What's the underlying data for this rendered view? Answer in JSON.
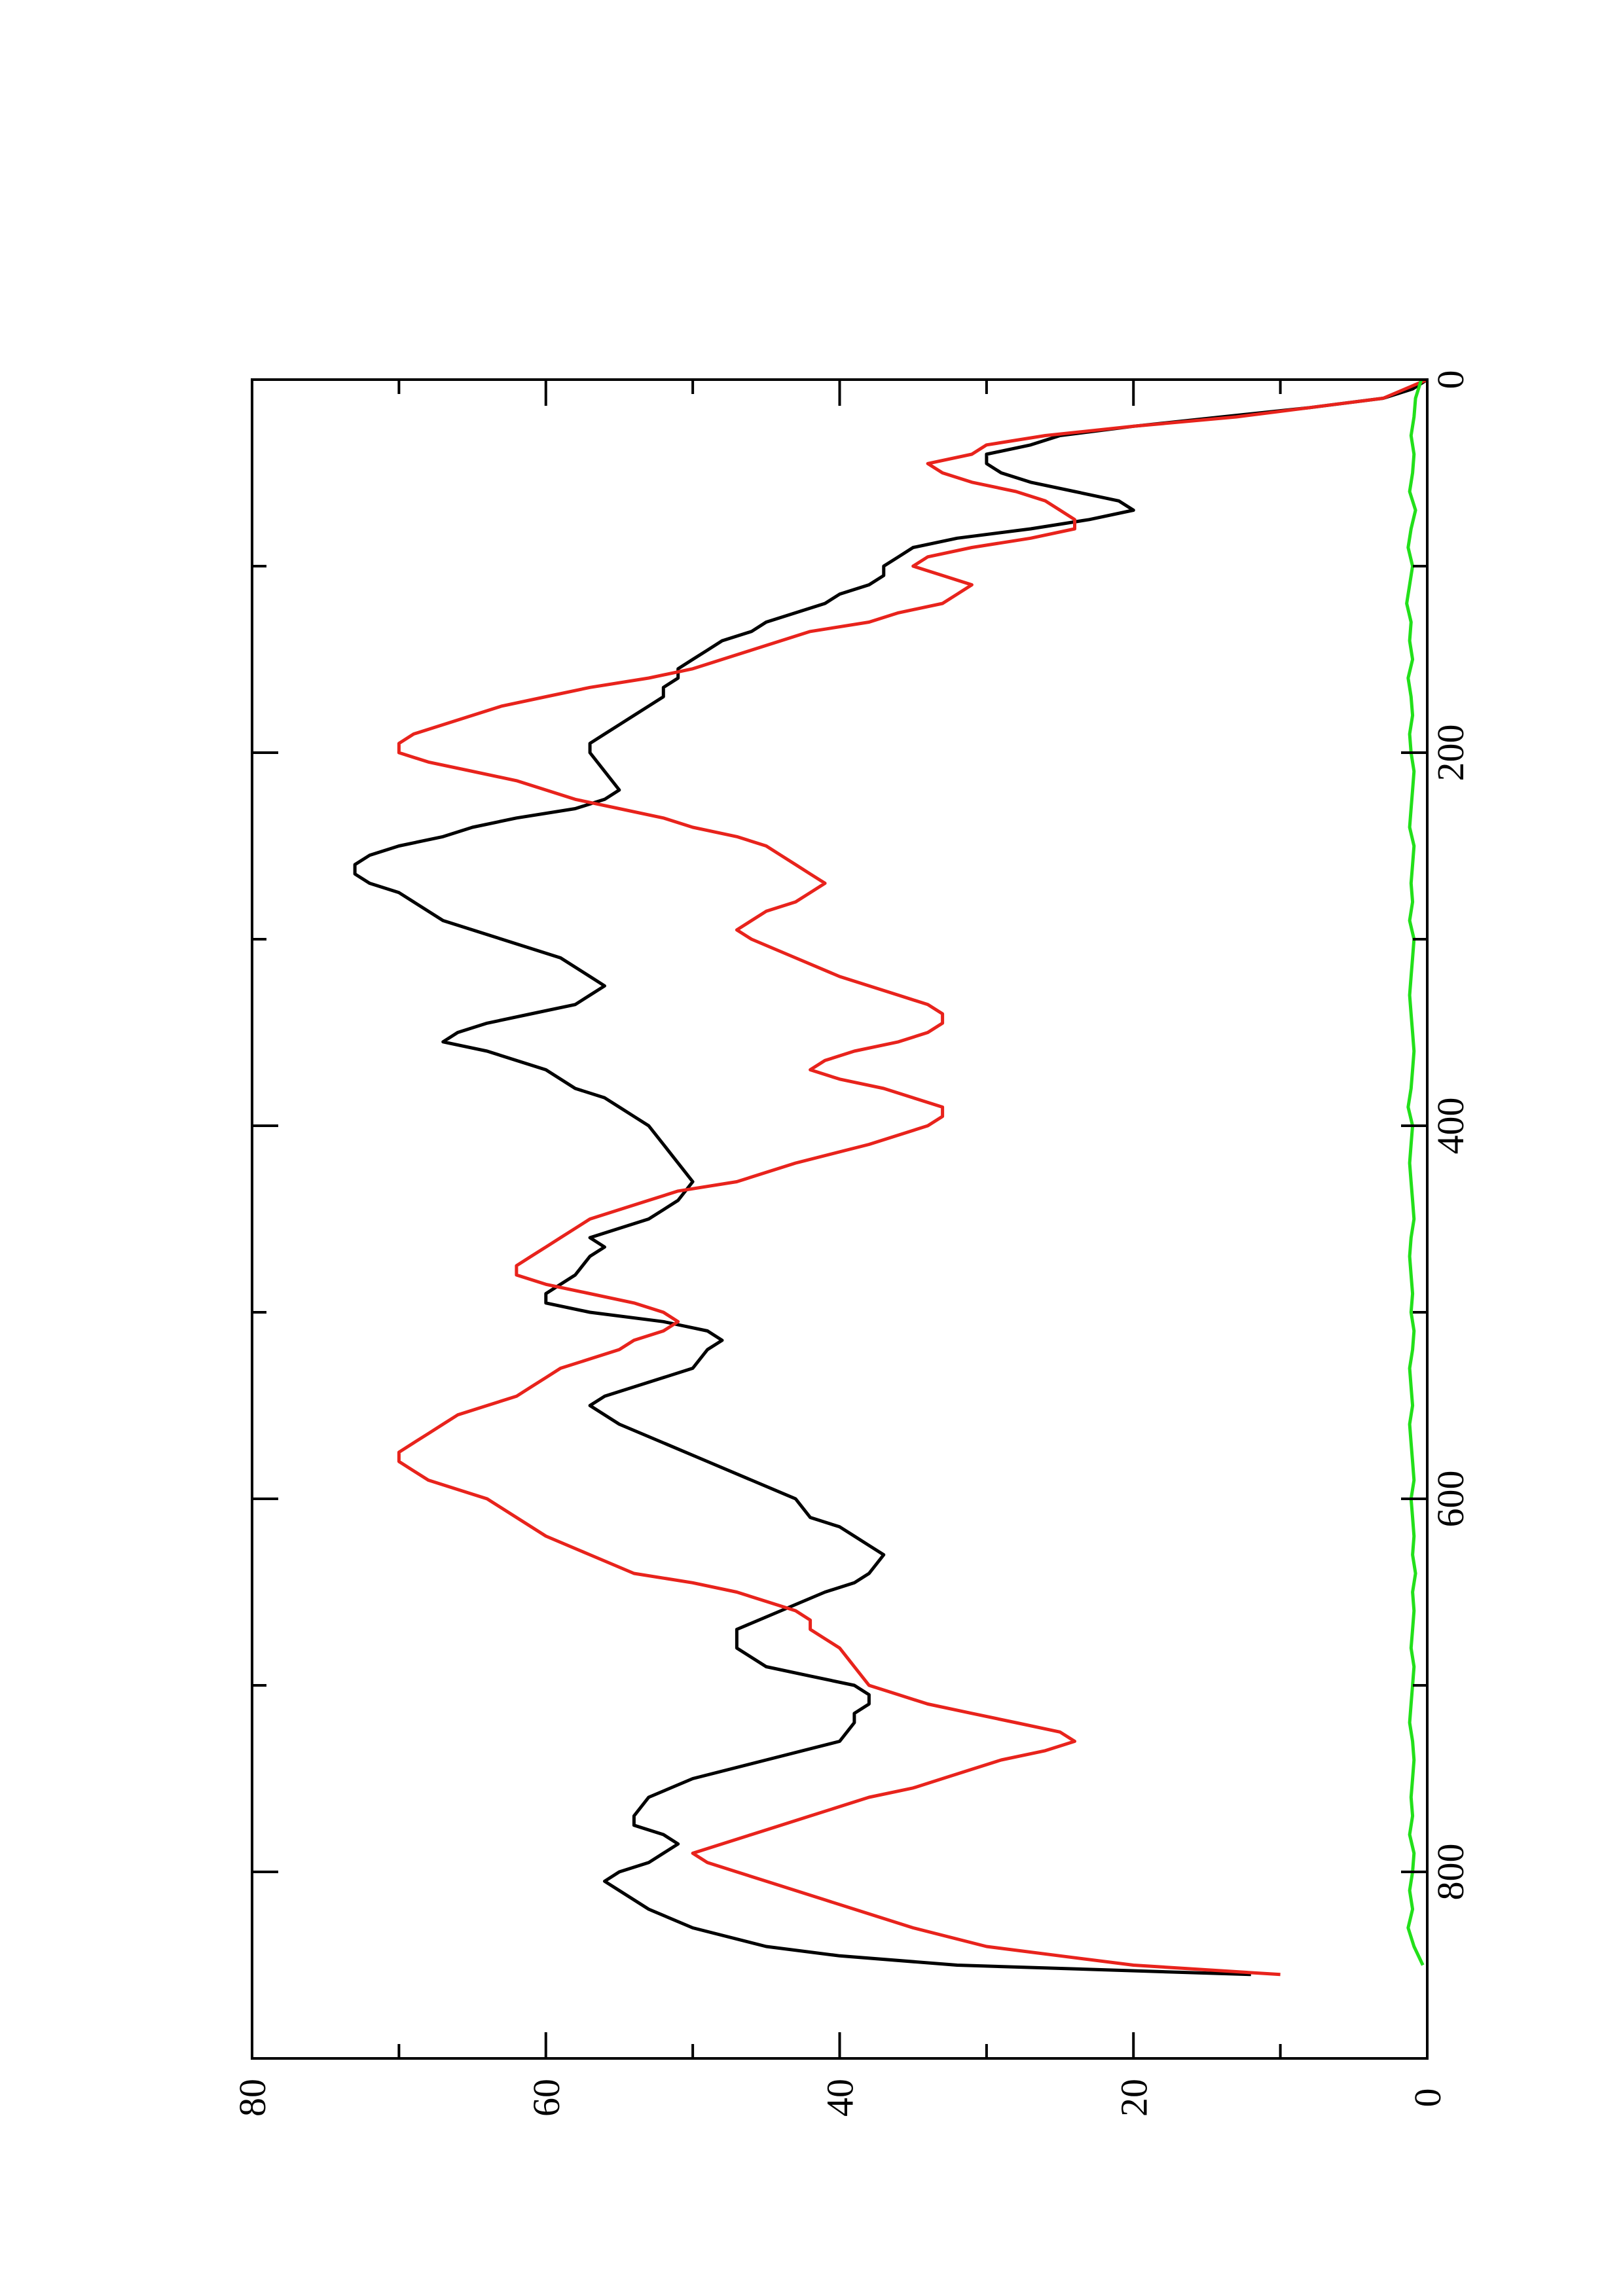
{
  "chart_data": {
    "type": "line",
    "orientation": "rotated 90 degrees counter-clockwise (page in landscape)",
    "title": "",
    "xlabel": "",
    "ylabel": "",
    "xlim": [
      0,
      900
    ],
    "ylim": [
      0,
      80
    ],
    "x_ticks": [
      0,
      200,
      400,
      600,
      800
    ],
    "x_tick_labels": [
      "0",
      "200",
      "400",
      "600",
      "800"
    ],
    "x_minor_ticks": [
      100,
      300,
      500,
      700
    ],
    "y_ticks": [
      0,
      20,
      40,
      60,
      80
    ],
    "y_tick_labels": [
      "0",
      "20",
      "40",
      "60",
      "80"
    ],
    "y_minor_ticks": [
      10,
      30,
      50,
      70
    ],
    "grid": false,
    "legend": "none",
    "series": [
      {
        "color": "#000000",
        "x": [
          0,
          5,
          10,
          15,
          20,
          25,
          30,
          35,
          40,
          45,
          50,
          55,
          60,
          65,
          70,
          75,
          80,
          85,
          90,
          95,
          100,
          105,
          110,
          115,
          120,
          125,
          130,
          135,
          140,
          145,
          150,
          155,
          160,
          165,
          170,
          175,
          180,
          185,
          190,
          195,
          200,
          210,
          220,
          225,
          230,
          235,
          240,
          245,
          250,
          255,
          260,
          265,
          270,
          275,
          280,
          290,
          300,
          310,
          320,
          325,
          330,
          335,
          340,
          345,
          350,
          355,
          360,
          370,
          380,
          385,
          390,
          395,
          400,
          410,
          420,
          430,
          440,
          445,
          450,
          455,
          460,
          465,
          470,
          480,
          490,
          495,
          500,
          505,
          510,
          515,
          520,
          530,
          535,
          540,
          545,
          550,
          560,
          570,
          580,
          590,
          600,
          610,
          615,
          620,
          625,
          630,
          640,
          645,
          650,
          660,
          670,
          680,
          690,
          695,
          700,
          705,
          710,
          715,
          720,
          730,
          740,
          750,
          760,
          770,
          775,
          780,
          785,
          790,
          795,
          800,
          805,
          810,
          820,
          830,
          840,
          845,
          850,
          855
        ],
        "values": [
          0,
          1,
          3,
          8,
          14,
          20,
          25,
          27,
          30,
          30,
          29,
          27,
          24,
          21,
          20,
          23,
          27,
          32,
          35,
          36,
          37,
          37,
          38,
          40,
          41,
          43,
          45,
          46,
          48,
          49,
          50,
          51,
          51,
          52,
          52,
          53,
          54,
          55,
          56,
          57,
          57,
          56,
          55,
          56,
          58,
          62,
          65,
          67,
          70,
          72,
          73,
          73,
          72,
          70,
          69,
          67,
          63,
          59,
          57,
          56,
          57,
          58,
          61,
          64,
          66,
          67,
          64,
          60,
          58,
          56,
          55,
          54,
          53,
          52,
          51,
          50,
          51,
          52,
          53,
          55,
          57,
          56,
          57,
          58,
          60,
          60,
          57,
          52,
          49,
          48,
          49,
          50,
          52,
          54,
          56,
          57,
          55,
          52,
          49,
          46,
          43,
          42,
          40,
          39,
          38,
          37,
          38,
          39,
          41,
          44,
          47,
          47,
          45,
          42,
          39,
          38,
          38,
          39,
          39,
          40,
          45,
          50,
          53,
          54,
          54,
          52,
          51,
          52,
          53,
          55,
          56,
          55,
          53,
          50,
          45,
          40,
          32,
          12
        ]
      },
      {
        "color": "#e8231c",
        "x": [
          0,
          10,
          15,
          20,
          25,
          30,
          35,
          40,
          45,
          50,
          55,
          60,
          65,
          70,
          75,
          80,
          85,
          90,
          95,
          100,
          105,
          110,
          115,
          120,
          125,
          130,
          135,
          140,
          145,
          150,
          155,
          160,
          165,
          170,
          175,
          180,
          185,
          190,
          195,
          200,
          205,
          210,
          215,
          220,
          225,
          230,
          235,
          240,
          245,
          250,
          255,
          260,
          265,
          270,
          275,
          280,
          285,
          290,
          295,
          300,
          310,
          320,
          325,
          330,
          335,
          340,
          345,
          350,
          355,
          360,
          365,
          370,
          375,
          380,
          385,
          390,
          395,
          400,
          410,
          420,
          430,
          435,
          440,
          445,
          450,
          455,
          460,
          465,
          470,
          475,
          480,
          485,
          490,
          495,
          500,
          505,
          510,
          515,
          520,
          525,
          530,
          535,
          540,
          545,
          550,
          555,
          560,
          565,
          570,
          575,
          580,
          585,
          590,
          595,
          600,
          610,
          620,
          630,
          640,
          645,
          650,
          655,
          660,
          665,
          670,
          675,
          680,
          690,
          700,
          705,
          710,
          715,
          720,
          725,
          730,
          735,
          740,
          745,
          750,
          755,
          760,
          765,
          770,
          775,
          780,
          785,
          790,
          795,
          800,
          805,
          810,
          815,
          820,
          830,
          840,
          845,
          850,
          855
        ],
        "values": [
          0,
          3,
          8,
          13,
          20,
          26,
          30,
          31,
          34,
          33,
          31,
          28,
          26,
          25,
          24,
          24,
          27,
          31,
          34,
          35,
          33,
          31,
          32,
          33,
          36,
          38,
          42,
          44,
          46,
          48,
          50,
          53,
          57,
          60,
          63,
          65,
          67,
          69,
          70,
          70,
          68,
          65,
          62,
          60,
          58,
          55,
          52,
          50,
          47,
          45,
          44,
          43,
          42,
          41,
          42,
          43,
          45,
          46,
          47,
          46,
          43,
          40,
          38,
          36,
          34,
          33,
          33,
          34,
          36,
          39,
          41,
          42,
          40,
          37,
          35,
          33,
          33,
          34,
          38,
          43,
          47,
          51,
          53,
          55,
          57,
          58,
          59,
          60,
          61,
          62,
          62,
          60,
          57,
          54,
          52,
          51,
          52,
          54,
          55,
          57,
          59,
          60,
          61,
          62,
          64,
          66,
          67,
          68,
          69,
          70,
          70,
          69,
          68,
          66,
          64,
          62,
          60,
          57,
          54,
          50,
          47,
          45,
          43,
          42,
          42,
          41,
          40,
          39,
          38,
          36,
          34,
          31,
          28,
          25,
          24,
          26,
          29,
          31,
          33,
          35,
          38,
          40,
          42,
          44,
          46,
          48,
          50,
          49,
          47,
          45,
          43,
          41,
          39,
          35,
          30,
          25,
          20,
          10
        ]
      },
      {
        "color": "#22e01a",
        "x": [
          0,
          10,
          20,
          30,
          40,
          50,
          60,
          70,
          80,
          90,
          100,
          110,
          120,
          130,
          140,
          150,
          160,
          170,
          180,
          190,
          200,
          210,
          220,
          230,
          240,
          250,
          260,
          270,
          280,
          290,
          300,
          310,
          320,
          330,
          340,
          350,
          360,
          370,
          380,
          390,
          400,
          410,
          420,
          430,
          440,
          450,
          460,
          470,
          480,
          490,
          500,
          510,
          520,
          530,
          540,
          550,
          560,
          570,
          580,
          590,
          600,
          610,
          620,
          630,
          640,
          650,
          660,
          670,
          680,
          690,
          700,
          710,
          720,
          730,
          740,
          750,
          760,
          770,
          780,
          790,
          800,
          810,
          820,
          830,
          840,
          850
        ],
        "values": [
          0.4,
          0.8,
          0.9,
          1.1,
          0.9,
          1.0,
          1.2,
          0.8,
          1.1,
          1.3,
          1.0,
          1.2,
          1.4,
          1.1,
          1.2,
          1.0,
          1.3,
          1.1,
          1.0,
          1.2,
          1.1,
          0.9,
          1.0,
          1.1,
          1.2,
          0.9,
          1.0,
          1.1,
          1.0,
          1.2,
          0.9,
          1.0,
          1.1,
          1.2,
          1.1,
          1.0,
          0.9,
          1.0,
          1.1,
          1.3,
          1.0,
          1.1,
          1.2,
          1.1,
          1.0,
          0.9,
          1.1,
          1.2,
          1.1,
          1.0,
          1.1,
          0.9,
          1.0,
          1.2,
          1.1,
          1.0,
          1.2,
          1.1,
          1.0,
          0.9,
          1.1,
          1.0,
          0.9,
          1.0,
          0.8,
          1.0,
          0.9,
          1.0,
          1.1,
          0.9,
          1.0,
          1.1,
          1.2,
          1.0,
          0.9,
          1.0,
          1.1,
          1.0,
          1.2,
          0.9,
          1.0,
          1.2,
          1.0,
          1.3,
          0.9,
          0.3
        ]
      }
    ]
  }
}
